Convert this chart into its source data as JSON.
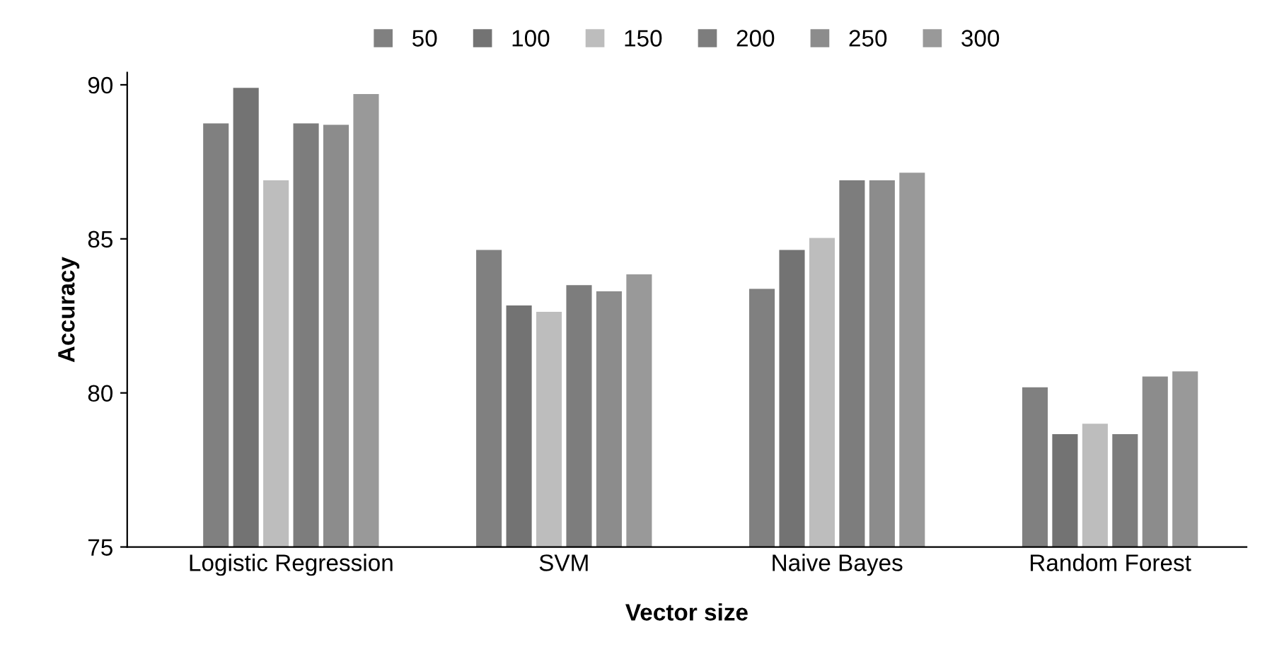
{
  "chart_data": {
    "type": "bar",
    "xlabel": "Vector size",
    "ylabel": "Accuracy",
    "categories": [
      "Logistic Regression",
      "SVM",
      "Naive Bayes",
      "Random Forest"
    ],
    "series": [
      {
        "name": "50",
        "color": "#808080",
        "values": [
          88.75,
          84.64,
          83.38,
          80.18
        ]
      },
      {
        "name": "100",
        "color": "#737373",
        "values": [
          89.9,
          82.84,
          84.64,
          78.66
        ]
      },
      {
        "name": "150",
        "color": "#bdbdbd",
        "values": [
          86.9,
          82.63,
          85.03,
          79.0
        ]
      },
      {
        "name": "200",
        "color": "#7d7d7d",
        "values": [
          88.75,
          83.5,
          86.9,
          78.66
        ]
      },
      {
        "name": "250",
        "color": "#8c8c8c",
        "values": [
          88.7,
          83.3,
          86.9,
          80.53
        ]
      },
      {
        "name": "300",
        "color": "#999999",
        "values": [
          89.7,
          83.85,
          87.15,
          80.7
        ]
      }
    ],
    "ylim": [
      75,
      90.4
    ],
    "yticks": [
      75,
      80,
      85,
      90
    ],
    "grid": false,
    "legend": "top"
  }
}
